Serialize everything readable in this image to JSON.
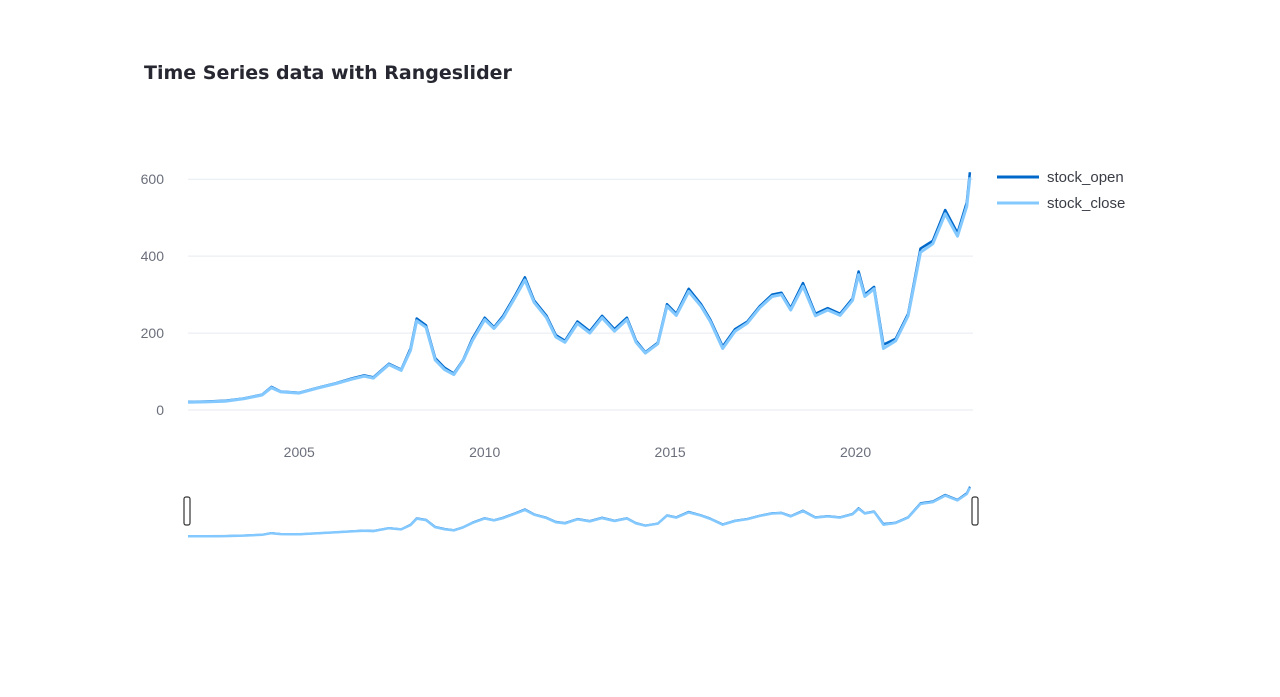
{
  "chart": {
    "title": "Time Series data with Rangeslider"
  },
  "colors": {
    "stock_open": "#0068c9",
    "stock_close": "#83c9ff",
    "grid": "#e6eaf1",
    "tick_text": "#6b6f7b",
    "title": "#262730"
  },
  "chart_data": {
    "type": "line",
    "title": "Time Series data with Rangeslider",
    "xlabel": "",
    "ylabel": "",
    "xlim": [
      "2002-01-01",
      "2023-03-01"
    ],
    "ylim": [
      0,
      650
    ],
    "grid": true,
    "legend_position": "top-right",
    "rangeslider": true,
    "x_ticks": [
      "2005",
      "2010",
      "2015",
      "2020"
    ],
    "y_ticks": [
      "0",
      "200",
      "400",
      "600"
    ],
    "x": [
      "2002-01",
      "2002-07",
      "2003-01",
      "2003-07",
      "2004-01",
      "2004-04",
      "2004-07",
      "2005-01",
      "2005-07",
      "2006-01",
      "2006-06",
      "2006-10",
      "2007-01",
      "2007-06",
      "2007-10",
      "2008-01",
      "2008-03",
      "2008-06",
      "2008-09",
      "2008-12",
      "2009-03",
      "2009-06",
      "2009-09",
      "2010-01",
      "2010-04",
      "2010-07",
      "2010-11",
      "2011-02",
      "2011-05",
      "2011-09",
      "2011-12",
      "2012-03",
      "2012-07",
      "2012-11",
      "2013-03",
      "2013-07",
      "2013-11",
      "2014-02",
      "2014-05",
      "2014-09",
      "2014-12",
      "2015-03",
      "2015-07",
      "2015-11",
      "2016-02",
      "2016-06",
      "2016-10",
      "2017-02",
      "2017-06",
      "2017-10",
      "2018-01",
      "2018-04",
      "2018-08",
      "2018-12",
      "2019-04",
      "2019-08",
      "2019-12",
      "2020-02",
      "2020-04",
      "2020-07",
      "2020-10",
      "2021-02",
      "2021-06",
      "2021-10",
      "2022-02",
      "2022-06",
      "2022-10",
      "2023-01",
      "2023-02"
    ],
    "series": [
      {
        "name": "stock_open",
        "values": [
          21,
          22,
          24,
          30,
          40,
          60,
          48,
          45,
          58,
          70,
          82,
          90,
          85,
          120,
          105,
          160,
          238,
          220,
          135,
          110,
          95,
          130,
          185,
          240,
          215,
          245,
          300,
          345,
          285,
          245,
          195,
          180,
          230,
          205,
          245,
          210,
          240,
          180,
          150,
          175,
          275,
          250,
          315,
          275,
          235,
          165,
          210,
          230,
          270,
          300,
          305,
          265,
          330,
          250,
          265,
          250,
          290,
          360,
          300,
          320,
          170,
          185,
          250,
          420,
          440,
          520,
          460,
          540,
          618
        ]
      },
      {
        "name": "stock_close",
        "values": [
          20,
          21,
          23,
          29,
          39,
          58,
          47,
          44,
          57,
          69,
          80,
          88,
          83,
          118,
          103,
          155,
          232,
          215,
          130,
          105,
          92,
          128,
          180,
          235,
          212,
          240,
          295,
          338,
          280,
          240,
          190,
          176,
          225,
          200,
          240,
          205,
          235,
          176,
          148,
          172,
          270,
          246,
          308,
          270,
          230,
          160,
          205,
          226,
          266,
          295,
          300,
          260,
          322,
          245,
          260,
          246,
          285,
          352,
          295,
          315,
          160,
          180,
          245,
          410,
          432,
          510,
          452,
          530,
          605
        ]
      }
    ]
  }
}
